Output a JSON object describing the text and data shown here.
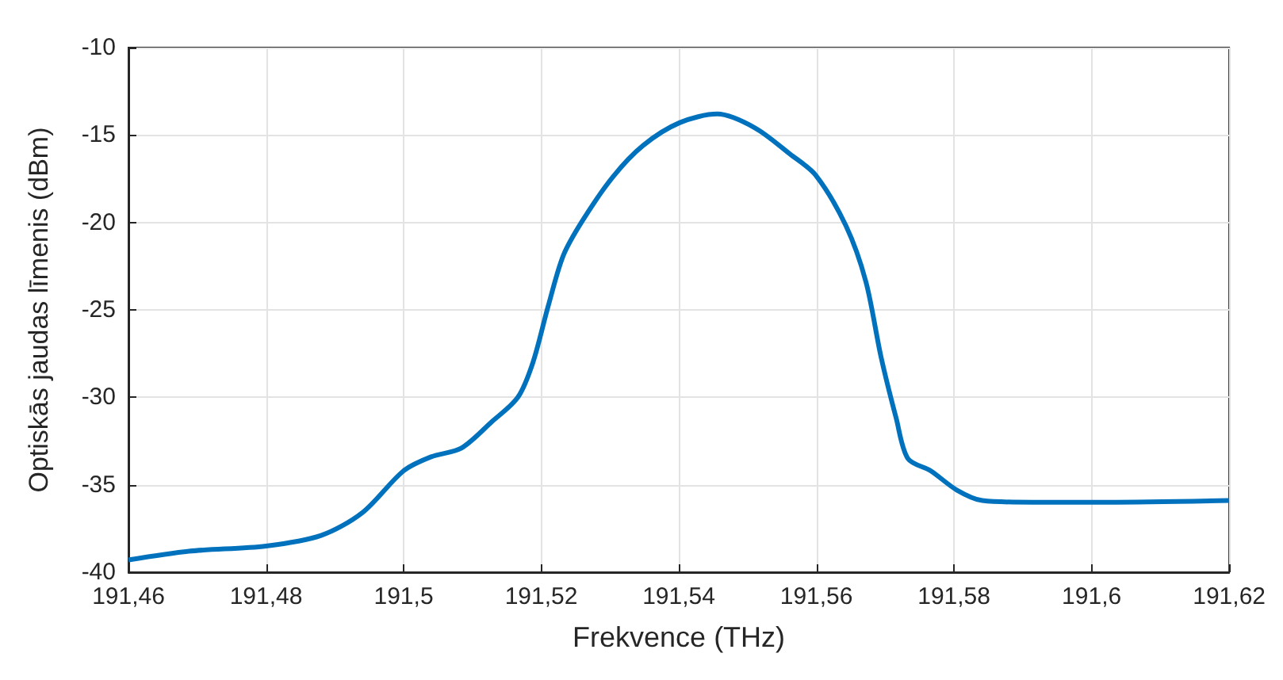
{
  "chart_data": {
    "type": "line",
    "xlabel": "Frekvence (THz)",
    "ylabel": "Optiskās jaudas līmenis (dBm)",
    "x": [
      191.46,
      191.4688,
      191.48,
      191.488,
      191.494,
      191.5,
      191.504,
      191.5084,
      191.5128,
      191.5166,
      191.5188,
      191.521,
      191.5232,
      191.526,
      191.5304,
      191.5348,
      191.5401,
      191.5456,
      191.5511,
      191.5562,
      191.5599,
      191.5643,
      191.5672,
      191.5694,
      191.5716,
      191.5733,
      191.5766,
      191.5804,
      191.5841,
      191.5914,
      191.6024,
      191.62
    ],
    "series": [
      {
        "color": "#0072bd",
        "values": [
          -39.3,
          -38.8,
          -38.5,
          -37.9,
          -36.6,
          -34.2,
          -33.4,
          -32.9,
          -31.4,
          -30.0,
          -28.0,
          -24.8,
          -21.9,
          -19.9,
          -17.4,
          -15.6,
          -14.3,
          -13.8,
          -14.6,
          -16.1,
          -17.3,
          -20.2,
          -23.4,
          -27.7,
          -31.2,
          -33.5,
          -34.2,
          -35.3,
          -35.9,
          -36.0,
          -36.0,
          -35.9
        ]
      }
    ],
    "xlim": [
      191.46,
      191.62
    ],
    "xticks": [
      {
        "value": 191.46,
        "label": "191,46"
      },
      {
        "value": 191.48,
        "label": "191,48"
      },
      {
        "value": 191.5,
        "label": "191,5"
      },
      {
        "value": 191.52,
        "label": "191,52"
      },
      {
        "value": 191.54,
        "label": "191,54"
      },
      {
        "value": 191.56,
        "label": "191,56"
      },
      {
        "value": 191.58,
        "label": "191,58"
      },
      {
        "value": 191.6,
        "label": "191,6"
      },
      {
        "value": 191.62,
        "label": "191,62"
      }
    ],
    "ylim": [
      -40,
      -10
    ],
    "yticks": [
      -40,
      -35,
      -30,
      -25,
      -20,
      -15,
      -10
    ],
    "grid": true,
    "line_style": "solid",
    "marker": "none"
  }
}
